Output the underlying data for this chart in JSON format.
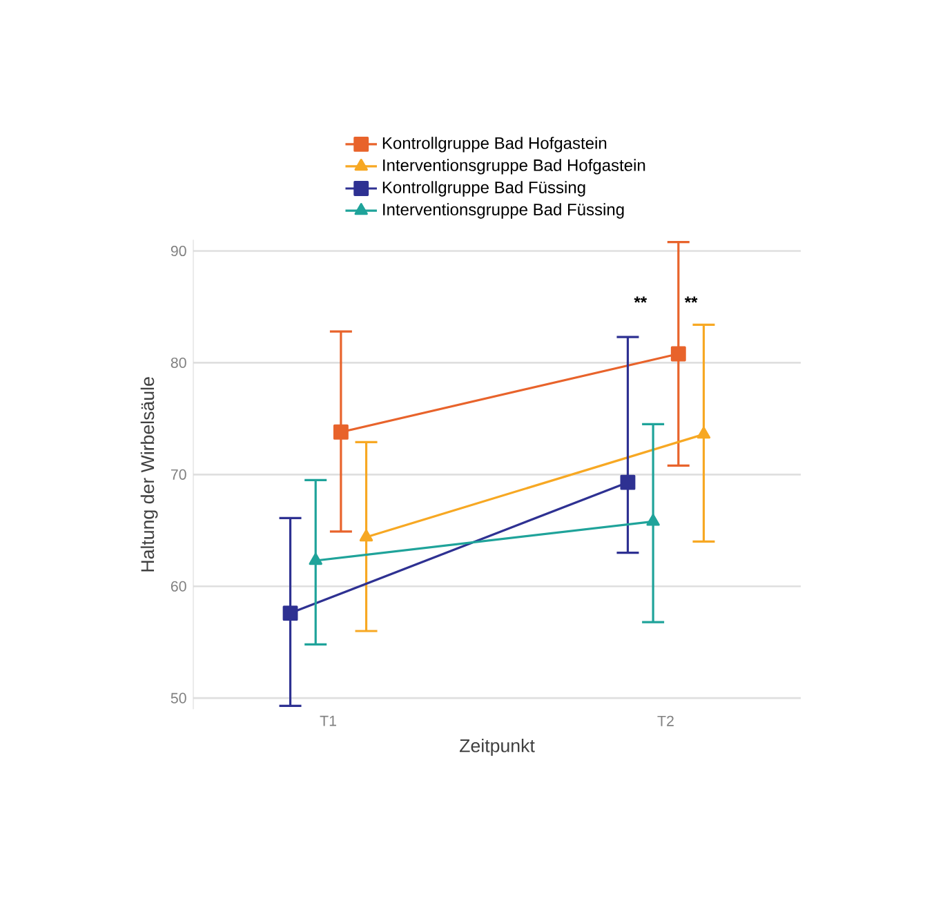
{
  "chart_data": {
    "type": "line",
    "xlabel": "Zeitpunkt",
    "ylabel": "Haltung der Wirbelsäule",
    "categories": [
      "T1",
      "T2"
    ],
    "series": [
      {
        "name": "Kontrollgruppe Bad Hofgastein",
        "color": "#e8632b",
        "marker": "square",
        "values": [
          73.8,
          80.8
        ],
        "errors": [
          [
            64.9,
            82.8
          ],
          [
            70.8,
            90.8
          ]
        ]
      },
      {
        "name": "Interventionsgruppe Bad Hofgastein",
        "color": "#f7a823",
        "marker": "triangle",
        "values": [
          64.4,
          73.6
        ],
        "errors": [
          [
            56,
            72.9
          ],
          [
            64,
            83.4
          ]
        ]
      },
      {
        "name": "Kontrollgruppe Bad Füssing",
        "color": "#2e3192",
        "marker": "square",
        "values": [
          57.6,
          69.3
        ],
        "errors": [
          [
            49.3,
            66.1
          ],
          [
            63,
            82.3
          ]
        ]
      },
      {
        "name": "Interventionsgruppe Bad Füssing",
        "color": "#1fa39a",
        "marker": "triangle",
        "values": [
          62.3,
          65.8
        ],
        "errors": [
          [
            54.8,
            69.5
          ],
          [
            56.8,
            74.5
          ]
        ]
      }
    ],
    "ylim": [
      49,
      91
    ],
    "yticks": [
      50,
      60,
      70,
      80,
      90
    ],
    "grid": "y",
    "legend": "top",
    "annotations": [
      "**",
      "**"
    ]
  }
}
